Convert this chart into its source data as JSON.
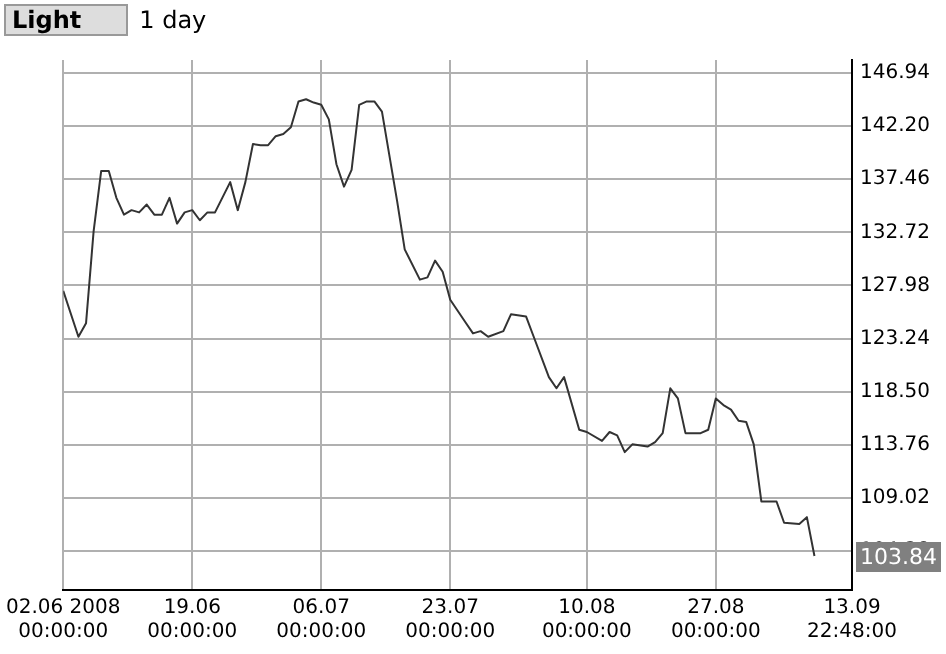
{
  "chart_data": {
    "type": "line",
    "title": "Light",
    "subtitle": "1 day",
    "x": [
      "2008-06-02",
      "2008-06-04",
      "2008-06-05",
      "2008-06-06",
      "2008-06-07",
      "2008-06-08",
      "2008-06-09",
      "2008-06-10",
      "2008-06-11",
      "2008-06-12",
      "2008-06-13",
      "2008-06-14",
      "2008-06-15",
      "2008-06-16",
      "2008-06-17",
      "2008-06-18",
      "2008-06-19",
      "2008-06-20",
      "2008-06-21",
      "2008-06-22",
      "2008-06-24",
      "2008-06-25",
      "2008-06-26",
      "2008-06-27",
      "2008-06-28",
      "2008-06-29",
      "2008-06-30",
      "2008-07-01",
      "2008-07-02",
      "2008-07-03",
      "2008-07-04",
      "2008-07-05",
      "2008-07-06",
      "2008-07-07",
      "2008-07-08",
      "2008-07-09",
      "2008-07-10",
      "2008-07-11",
      "2008-07-12",
      "2008-07-13",
      "2008-07-14",
      "2008-07-16",
      "2008-07-17",
      "2008-07-19",
      "2008-07-20",
      "2008-07-21",
      "2008-07-22",
      "2008-07-23",
      "2008-07-25",
      "2008-07-26",
      "2008-07-27",
      "2008-07-28",
      "2008-07-30",
      "2008-07-31",
      "2008-08-02",
      "2008-08-03",
      "2008-08-05",
      "2008-08-06",
      "2008-08-07",
      "2008-08-09",
      "2008-08-10",
      "2008-08-12",
      "2008-08-13",
      "2008-08-14",
      "2008-08-15",
      "2008-08-16",
      "2008-08-18",
      "2008-08-19",
      "2008-08-20",
      "2008-08-21",
      "2008-08-22",
      "2008-08-23",
      "2008-08-25",
      "2008-08-26",
      "2008-08-27",
      "2008-08-28",
      "2008-08-29",
      "2008-08-30",
      "2008-08-31",
      "2008-09-01",
      "2008-09-02",
      "2008-09-04",
      "2008-09-05",
      "2008-09-07",
      "2008-09-08",
      "2008-09-09"
    ],
    "series": [
      {
        "color": "#333333",
        "values": [
          127.5,
          123.4,
          124.6,
          132.8,
          138.2,
          138.2,
          135.8,
          134.3,
          134.7,
          134.5,
          135.2,
          134.3,
          134.3,
          135.8,
          133.5,
          134.5,
          134.7,
          133.8,
          134.5,
          134.5,
          137.2,
          134.7,
          137.2,
          140.6,
          140.5,
          140.5,
          141.3,
          141.5,
          142.1,
          144.4,
          144.6,
          144.3,
          144.1,
          142.8,
          138.8,
          136.8,
          138.3,
          144.1,
          144.4,
          144.4,
          143.5,
          135.5,
          131.2,
          128.5,
          128.7,
          130.2,
          129.2,
          126.7,
          124.7,
          123.7,
          123.9,
          123.4,
          123.9,
          125.4,
          125.2,
          123.4,
          119.8,
          118.8,
          119.8,
          115.1,
          114.9,
          114.1,
          114.9,
          114.6,
          113.1,
          113.8,
          113.6,
          114.0,
          114.8,
          118.8,
          117.9,
          114.8,
          114.8,
          115.1,
          117.9,
          117.3,
          116.9,
          115.9,
          115.8,
          113.8,
          108.7,
          108.7,
          106.8,
          106.7,
          107.3,
          103.84
        ]
      }
    ],
    "xlim": [
      "2008-06-02",
      "2008-09-13T22:48"
    ],
    "xticks": [
      {
        "value": "2008-06-02",
        "label": "02.06 2008\n00:00:00"
      },
      {
        "value": "2008-06-19",
        "label": "19.06\n00:00:00"
      },
      {
        "value": "2008-07-06",
        "label": "06.07\n00:00:00"
      },
      {
        "value": "2008-07-23",
        "label": "23.07\n00:00:00"
      },
      {
        "value": "2008-08-10",
        "label": "10.08\n00:00:00"
      },
      {
        "value": "2008-08-27",
        "label": "27.08\n00:00:00"
      },
      {
        "value": "2008-09-13T22:48",
        "label": "13.09\n22:48:00"
      }
    ],
    "ylim": [
      100.8,
      148.1
    ],
    "yticks": [
      104.28,
      109.02,
      113.76,
      {
        "value": 118.5,
        "label": "118.50"
      },
      123.24,
      127.98,
      132.72,
      137.46,
      {
        "value": 142.2,
        "label": "142.20"
      },
      146.94
    ],
    "annotations": [
      {
        "text": "103.84",
        "y": 103.84
      }
    ],
    "grid": true,
    "marker": "none",
    "line_style": "solid"
  }
}
